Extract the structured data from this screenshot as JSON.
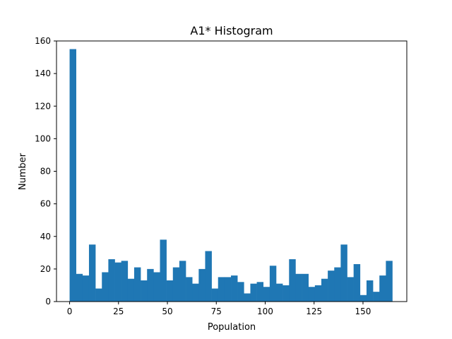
{
  "chart_data": {
    "type": "bar",
    "title": "A1* Histogram",
    "xlabel": "Population",
    "ylabel": "Number",
    "xlim": [
      -6.7,
      172.4
    ],
    "ylim": [
      0,
      160
    ],
    "xticks": [
      0,
      25,
      50,
      75,
      100,
      125,
      150
    ],
    "yticks": [
      0,
      20,
      40,
      60,
      80,
      100,
      120,
      140,
      160
    ],
    "bar_color": "#1f77b4",
    "grid": false,
    "legend": "none",
    "series": [
      {
        "bins": [
          [
            0.0,
            3.3
          ],
          [
            3.3,
            6.6
          ],
          [
            6.6,
            9.9
          ],
          [
            9.9,
            13.2
          ],
          [
            13.2,
            16.5
          ],
          [
            16.5,
            19.8
          ],
          [
            19.8,
            23.1
          ],
          [
            23.1,
            26.4
          ],
          [
            26.4,
            29.7
          ],
          [
            29.7,
            33.0
          ],
          [
            33.0,
            36.3
          ],
          [
            36.3,
            39.6
          ],
          [
            39.6,
            42.9
          ],
          [
            42.9,
            46.2
          ],
          [
            46.2,
            49.5
          ],
          [
            49.5,
            52.8
          ],
          [
            52.8,
            56.1
          ],
          [
            56.1,
            59.4
          ],
          [
            59.4,
            62.7
          ],
          [
            62.7,
            66.0
          ],
          [
            66.0,
            69.3
          ],
          [
            69.3,
            72.6
          ],
          [
            72.6,
            75.9
          ],
          [
            75.9,
            79.2
          ],
          [
            79.2,
            82.5
          ],
          [
            82.5,
            85.8
          ],
          [
            85.8,
            89.1
          ],
          [
            89.1,
            92.4
          ],
          [
            92.4,
            95.7
          ],
          [
            95.7,
            99.0
          ],
          [
            99.0,
            102.3
          ],
          [
            102.3,
            105.6
          ],
          [
            105.6,
            108.9
          ],
          [
            108.9,
            112.2
          ],
          [
            112.2,
            115.5
          ],
          [
            115.5,
            118.8
          ],
          [
            118.8,
            122.1
          ],
          [
            122.1,
            125.4
          ],
          [
            125.4,
            128.7
          ],
          [
            128.7,
            132.0
          ],
          [
            132.0,
            135.3
          ],
          [
            135.3,
            138.6
          ],
          [
            138.6,
            141.9
          ],
          [
            141.9,
            145.2
          ],
          [
            145.2,
            148.5
          ],
          [
            148.5,
            151.8
          ],
          [
            151.8,
            155.1
          ],
          [
            155.1,
            158.4
          ],
          [
            158.4,
            161.7
          ],
          [
            161.7,
            165.0
          ]
        ],
        "values": [
          155,
          17,
          16,
          35,
          8,
          18,
          26,
          24,
          25,
          14,
          21,
          13,
          20,
          18,
          38,
          13,
          21,
          25,
          15,
          11,
          20,
          31,
          8,
          15,
          15,
          16,
          12,
          5,
          11,
          12,
          9,
          22,
          11,
          10,
          26,
          17,
          17,
          9,
          10,
          14,
          19,
          21,
          35,
          15,
          23,
          4,
          13,
          6,
          16,
          25
        ]
      }
    ]
  }
}
